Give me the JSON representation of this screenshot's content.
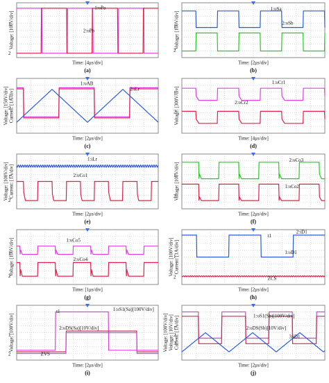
{
  "panels": [
    {
      "caption": "(a)",
      "y_labels": [
        "Voltage: [100V/div]"
      ],
      "x_label": "Time: [4μs/div]",
      "labels": [
        "1",
        "2",
        "1:υPa",
        "2:υPb"
      ]
    },
    {
      "caption": "(b)",
      "y_labels": [
        "Voltage: [100V/div]"
      ],
      "x_label": "Time: [2μs/div]",
      "labels": [
        "1",
        "2",
        "1:υSa",
        "2:υSb"
      ]
    },
    {
      "caption": "(c)",
      "y_labels": [
        "Voltage: [150V/div]",
        "Current: [1A/div]"
      ],
      "x_label": "Time: [2μs/div]",
      "labels": [
        "1",
        "2",
        "1:υAB",
        "2:iLr"
      ]
    },
    {
      "caption": "(d)",
      "y_labels": [
        "Voltage: [300V/div]"
      ],
      "x_label": "Time: [4μs/div]",
      "labels": [
        "1",
        "2",
        "1:υCr1",
        "2:υCr2"
      ]
    },
    {
      "caption": "(e)",
      "y_labels": [
        "Voltage: [100V/div]",
        "Current: [1A/div]"
      ],
      "x_label": "Time: [2μs/div]",
      "labels": [
        "1",
        "2",
        "1:iLr",
        "2:υCo1"
      ]
    },
    {
      "caption": "(f)",
      "y_labels": [
        "Voltage: [100V/div]"
      ],
      "x_label": "Time: [2μs/div]",
      "labels": [
        "1",
        "2",
        "2:υCo3",
        "1:υCo2"
      ]
    },
    {
      "caption": "(g)",
      "y_labels": [
        "Voltage: [100V/div]"
      ],
      "x_label": "Time: [1μs/div]",
      "labels": [
        "1",
        "2",
        "1:υCo5",
        "2:υCo4"
      ]
    },
    {
      "caption": "(h)",
      "y_labels": [
        "Voltage: [100V/div]",
        "Current: [1A/div]"
      ],
      "x_label": "Time: [2μs/div]",
      "labels": [
        "1",
        "2",
        "t1",
        "2:iD1",
        "1:υD1",
        "ZCS"
      ]
    },
    {
      "caption": "(i)",
      "y_labels": [
        "Voltage: [100V/div]"
      ],
      "x_label": "Time: [2μs/div]",
      "labels": [
        "1",
        "2",
        "t1",
        "1:υS1(Sa)[100V/div]",
        "2:υDS(Sa)[10V/div]",
        "ZVS"
      ]
    },
    {
      "caption": "(j)",
      "y_labels": [
        "Voltage: [100V/div]",
        "Voltage: [10V/div]",
        "Current: [1A/div]"
      ],
      "x_label": "Time: [2μs/div]",
      "labels": [
        "1",
        "2",
        "3",
        "1:υS1(Sb)[100V/div]",
        "2:υDS(Sb)[10V/div]",
        "3:iD1"
      ]
    }
  ]
}
